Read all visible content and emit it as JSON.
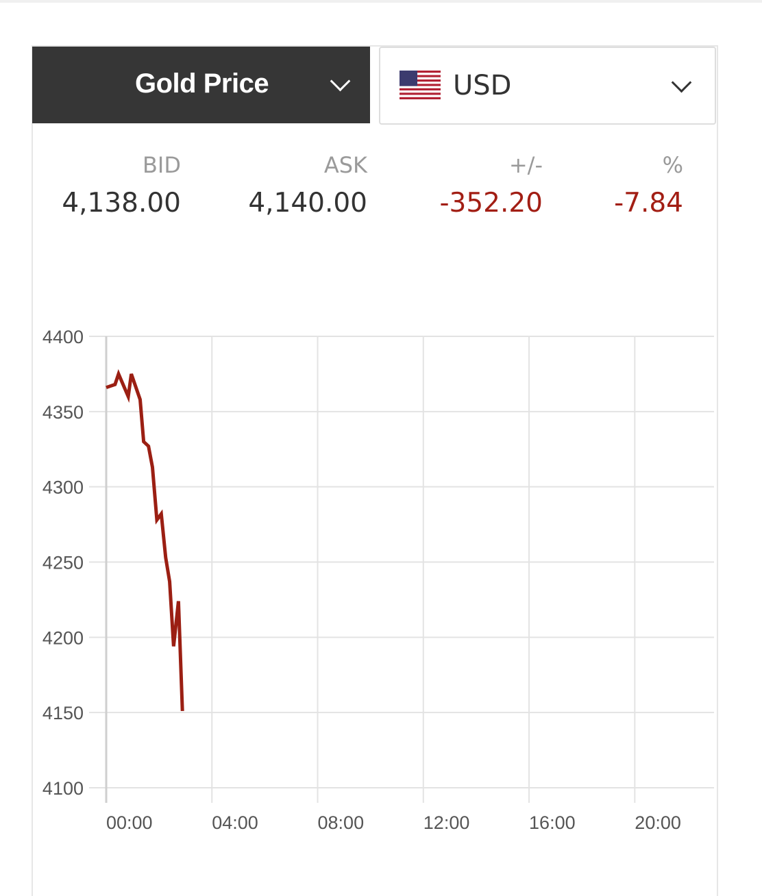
{
  "selector": {
    "metal": "Gold Price",
    "currency": "USD",
    "currency_flag": "us-flag-icon"
  },
  "quote": {
    "bid_label": "BID",
    "bid": "4,138.00",
    "ask_label": "ASK",
    "ask": "4,140.00",
    "change_label": "+/-",
    "change": "-352.20",
    "pct_label": "%",
    "pct": "-7.84"
  },
  "colors": {
    "header_bg": "#363636",
    "negative": "#a21e14",
    "line": "#9b1f13",
    "grid": "#e3e3e3"
  },
  "chart_data": {
    "type": "line",
    "xlim": [
      "00:00",
      "23:00"
    ],
    "ylim": [
      4100,
      4400
    ],
    "yticks": [
      "4400",
      "4350",
      "4300",
      "4250",
      "4200",
      "4150",
      "4100"
    ],
    "xticks": [
      "00:00",
      "04:00",
      "08:00",
      "12:00",
      "16:00",
      "20:00"
    ],
    "grid": true,
    "series": [
      {
        "x": [
          "00:00",
          "00:20",
          "00:28",
          "00:50",
          "00:57",
          "01:17",
          "01:25",
          "01:36",
          "01:45",
          "01:55",
          "02:05",
          "02:15",
          "02:24",
          "02:33",
          "02:44",
          "02:53"
        ],
        "y": [
          4366,
          4368,
          4375,
          4360,
          4375,
          4358,
          4330,
          4327,
          4313,
          4278,
          4282,
          4253,
          4237,
          4194,
          4224,
          4151
        ]
      }
    ]
  }
}
